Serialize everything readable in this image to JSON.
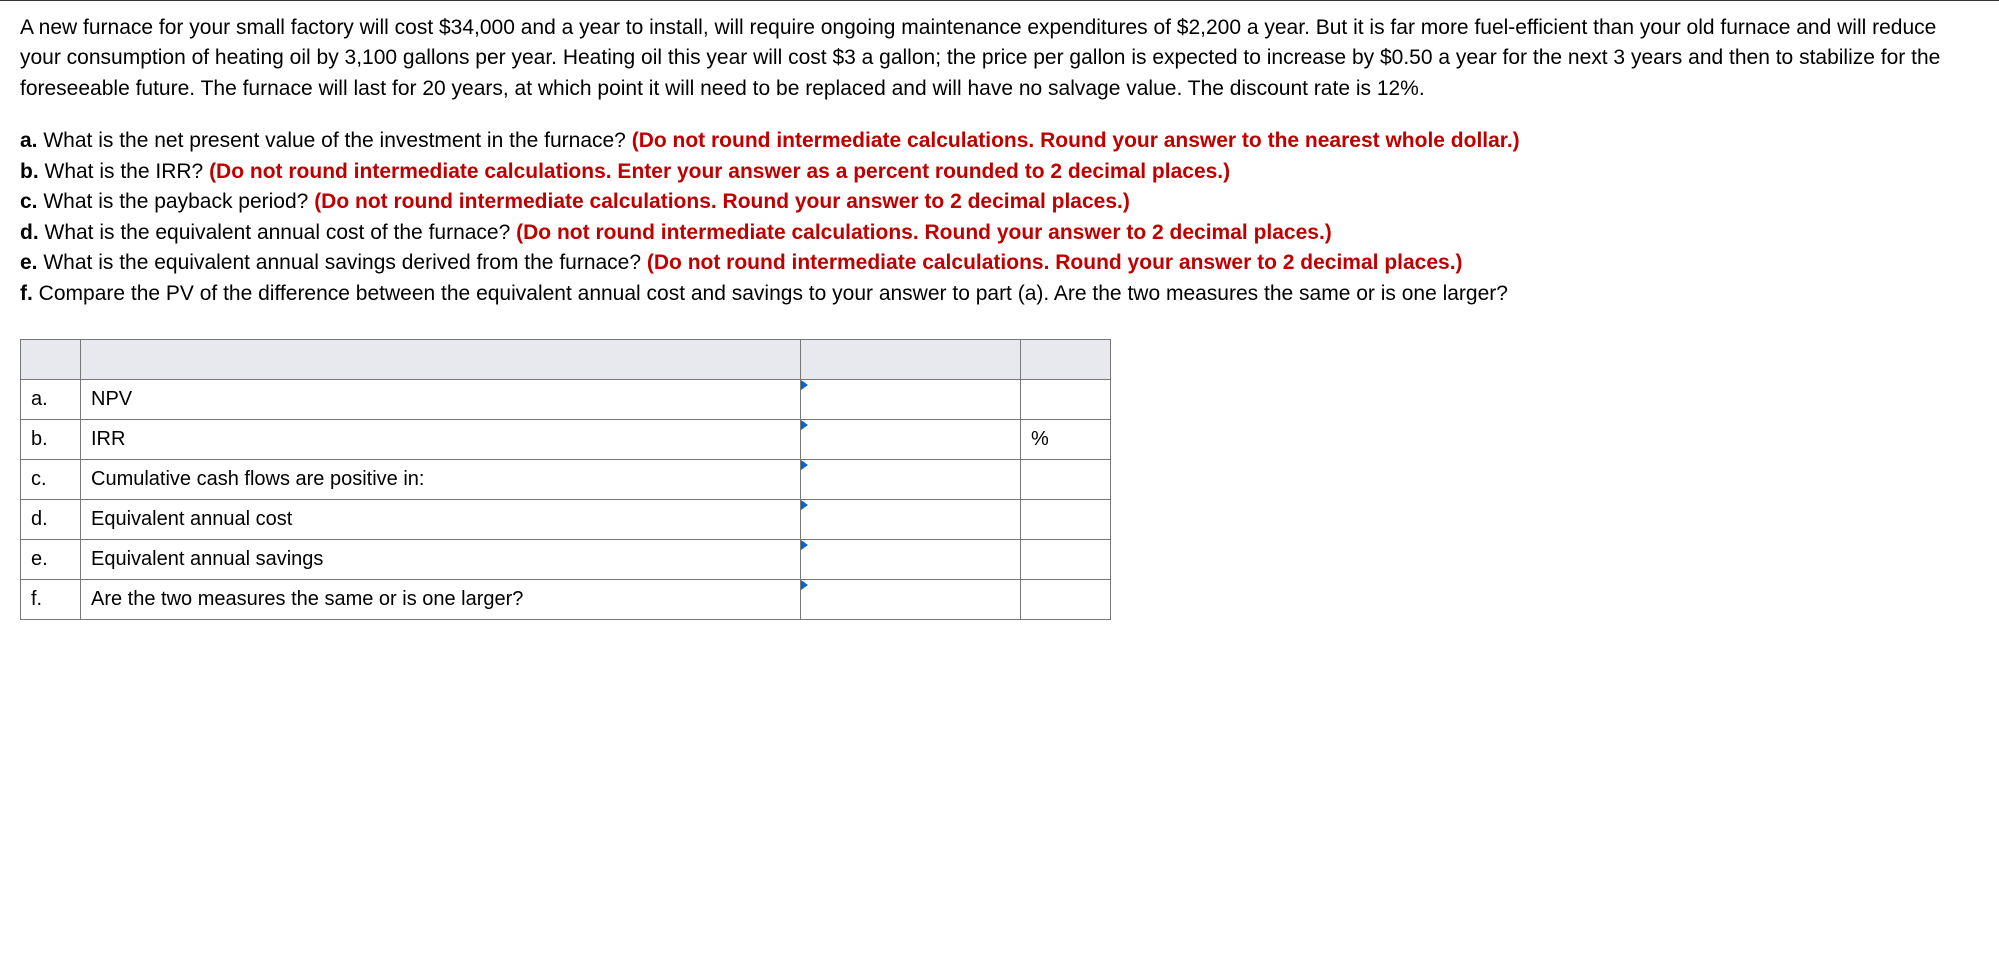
{
  "problem": {
    "intro": "A new furnace for your small factory will cost $34,000 and a year to install, will require ongoing maintenance expenditures of $2,200 a year. But it is far more fuel-efficient than your old furnace and will reduce your consumption of heating oil by 3,100 gallons per year. Heating oil this year will cost $3 a gallon; the price per gallon is expected to increase by $0.50 a year for the next 3 years and then to stabilize for the foreseeable future. The furnace will last for 20 years, at which point it will need to be replaced and will have no salvage value. The discount rate is 12%."
  },
  "questions": {
    "a": {
      "prefix": "a. ",
      "text": "What is the net present value of the investment in the furnace? ",
      "hint": "(Do not round intermediate calculations. Round your answer to the nearest whole dollar.)"
    },
    "b": {
      "prefix": "b. ",
      "text": "What is the IRR? ",
      "hint": "(Do not round intermediate calculations. Enter your answer as a percent rounded to 2 decimal places.)"
    },
    "c": {
      "prefix": "c. ",
      "text": "What is the payback period? ",
      "hint": "(Do not round intermediate calculations. Round your answer to 2 decimal places.)"
    },
    "d": {
      "prefix": "d. ",
      "text": "What is the equivalent annual cost of the furnace? ",
      "hint": "(Do not round intermediate calculations. Round your answer to 2 decimal places.)"
    },
    "e": {
      "prefix": "e. ",
      "text": "What is the equivalent annual savings derived from the furnace? ",
      "hint": "(Do not round intermediate calculations. Round your answer to 2 decimal places.)"
    },
    "f": {
      "prefix": "f. ",
      "text": "Compare the PV of the difference between the equivalent annual cost and savings to your answer to part (a). Are the two measures the same or is one larger?"
    }
  },
  "table": {
    "rows": [
      {
        "letter": "a.",
        "label": "NPV",
        "unit": ""
      },
      {
        "letter": "b.",
        "label": "IRR",
        "unit": "%"
      },
      {
        "letter": "c.",
        "label": "Cumulative cash flows are positive in:",
        "unit": ""
      },
      {
        "letter": "d.",
        "label": "Equivalent annual cost",
        "unit": ""
      },
      {
        "letter": "e.",
        "label": "Equivalent annual savings",
        "unit": ""
      },
      {
        "letter": "f.",
        "label": "Are the two measures the same or is one larger?",
        "unit": ""
      }
    ]
  },
  "styling": {
    "hint_color": "#c00000",
    "text_color": "#000000",
    "marker_color": "#0066cc",
    "header_bg": "#e8e8ef",
    "border_color": "#777777",
    "font_size_body": 21,
    "font_size_table": 20
  }
}
